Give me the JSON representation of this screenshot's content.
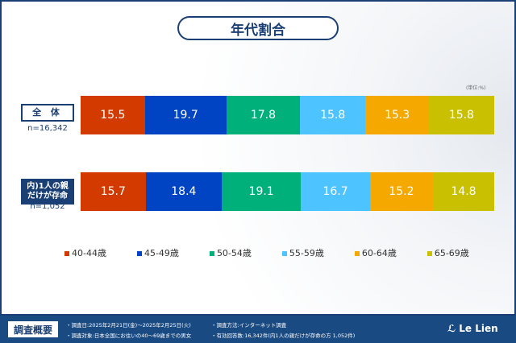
{
  "chart_data": {
    "type": "bar",
    "stacked": true,
    "title": "年代割合",
    "unit": "(単位:%)",
    "categories": [
      "全 体",
      "内)1人の親だけが存命"
    ],
    "sample_sizes": [
      "n=16,342",
      "n=1,052"
    ],
    "series": [
      {
        "name": "40-44歳",
        "color": "#d23a00",
        "values": [
          15.5,
          15.7
        ]
      },
      {
        "name": "45-49歳",
        "color": "#0044c4",
        "values": [
          19.7,
          18.4
        ]
      },
      {
        "name": "50-54歳",
        "color": "#00b07a",
        "values": [
          17.8,
          19.1
        ]
      },
      {
        "name": "55-59歳",
        "color": "#4dc3ff",
        "values": [
          15.8,
          16.7
        ]
      },
      {
        "name": "60-64歳",
        "color": "#f4a800",
        "values": [
          15.3,
          15.2
        ]
      },
      {
        "name": "65-69歳",
        "color": "#c8c000",
        "values": [
          15.8,
          14.8
        ]
      }
    ],
    "legend": "bottom"
  },
  "row_labels": {
    "r1": "全 体",
    "r2a": "内)1人の親",
    "r2b": "だけが存命"
  },
  "footer": {
    "heading": "調査概要",
    "date": "・調査日:2025年2月21日(金)～2025年2月25日(火)",
    "target": "・調査対象:日本全国にお住いの40～69歳までの男女",
    "method": "・調査方法:インターネット調査",
    "count": "・有効回答数:16,342件(内1人の親だけが存命の方 1,052件)",
    "logo": "Le Lien"
  }
}
